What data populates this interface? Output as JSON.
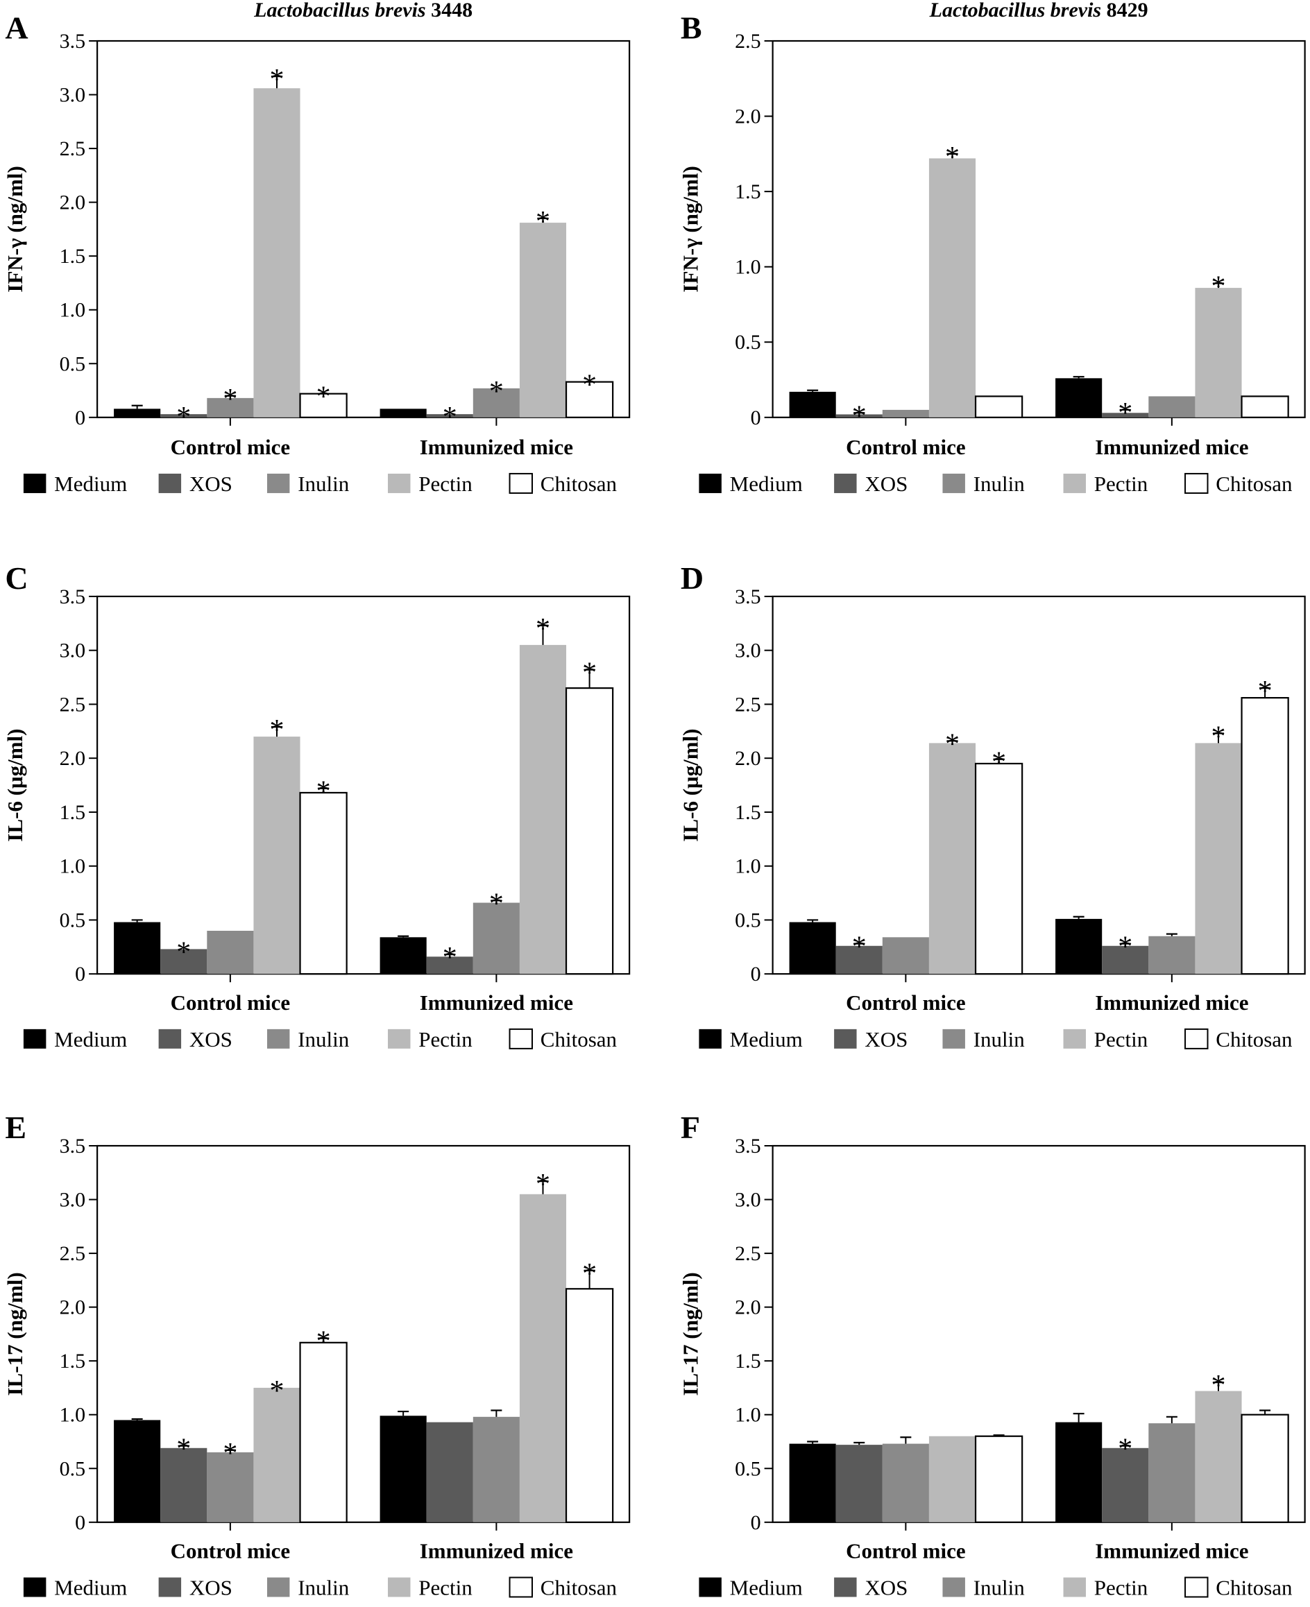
{
  "figure": {
    "legend": [
      {
        "name": "Medium",
        "color": "#000000"
      },
      {
        "name": "XOS",
        "color": "#5a5a5a"
      },
      {
        "name": "Inulin",
        "color": "#8a8a8a"
      },
      {
        "name": "Pectin",
        "color": "#b9b9b9"
      },
      {
        "name": "Chitosan",
        "color": "#ffffff"
      }
    ],
    "stroke_color": "#000000"
  },
  "chart_data": [
    {
      "panel": "A",
      "type": "bar",
      "title_italic": "Lactobacillus brevis",
      "title_strain": "3448",
      "ylabel": "IFN-γ (ng/ml)",
      "xlabel": "",
      "categories": [
        "Control mice",
        "Immunized mice"
      ],
      "ylim": [
        0,
        3.5
      ],
      "yticks": [
        0,
        0.5,
        1.0,
        1.5,
        2.0,
        2.5,
        3.0,
        3.5
      ],
      "ytick_labels": [
        "0",
        "0.5",
        "1.0",
        "1.5",
        "2.0",
        "2.5",
        "3.0",
        "3.5"
      ],
      "legend_position": "bottom",
      "series": [
        {
          "name": "Medium",
          "values": [
            0.08,
            0.08
          ],
          "errors": [
            0.03,
            0.0
          ],
          "significant": [
            false,
            false
          ]
        },
        {
          "name": "XOS",
          "values": [
            0.03,
            0.03
          ],
          "errors": [
            0.0,
            0.0
          ],
          "significant": [
            true,
            true
          ]
        },
        {
          "name": "Inulin",
          "values": [
            0.18,
            0.27
          ],
          "errors": [
            0.02,
            0.0
          ],
          "significant": [
            true,
            true
          ]
        },
        {
          "name": "Pectin",
          "values": [
            3.06,
            1.81
          ],
          "errors": [
            0.11,
            0.04
          ],
          "significant": [
            true,
            true
          ]
        },
        {
          "name": "Chitosan",
          "values": [
            0.22,
            0.33
          ],
          "errors": [
            0.0,
            0.0
          ],
          "significant": [
            true,
            true
          ]
        }
      ]
    },
    {
      "panel": "B",
      "type": "bar",
      "title_italic": "Lactobacillus brevis",
      "title_strain": "8429",
      "ylabel": "IFN-γ (ng/ml)",
      "xlabel": "",
      "categories": [
        "Control mice",
        "Immunized mice"
      ],
      "ylim": [
        0,
        2.5
      ],
      "yticks": [
        0,
        0.5,
        1.0,
        1.5,
        2.0,
        2.5
      ],
      "ytick_labels": [
        "0",
        "0.5",
        "1.0",
        "1.5",
        "2.0",
        "2.5"
      ],
      "legend_position": "bottom",
      "series": [
        {
          "name": "Medium",
          "values": [
            0.17,
            0.26
          ],
          "errors": [
            0.01,
            0.01
          ],
          "significant": [
            false,
            false
          ]
        },
        {
          "name": "XOS",
          "values": [
            0.02,
            0.03
          ],
          "errors": [
            0.01,
            0.02
          ],
          "significant": [
            true,
            true
          ]
        },
        {
          "name": "Inulin",
          "values": [
            0.05,
            0.14
          ],
          "errors": [
            0.0,
            0.0
          ],
          "significant": [
            false,
            false
          ]
        },
        {
          "name": "Pectin",
          "values": [
            1.72,
            0.86
          ],
          "errors": [
            0.03,
            0.03
          ],
          "significant": [
            true,
            true
          ]
        },
        {
          "name": "Chitosan",
          "values": [
            0.14,
            0.14
          ],
          "errors": [
            0.0,
            0.0
          ],
          "significant": [
            false,
            false
          ]
        }
      ]
    },
    {
      "panel": "C",
      "type": "bar",
      "title_italic": "",
      "title_strain": "",
      "ylabel": "IL-6 (μg/ml)",
      "xlabel": "",
      "categories": [
        "Control mice",
        "Immunized mice"
      ],
      "ylim": [
        0,
        3.5
      ],
      "yticks": [
        0,
        0.5,
        1.0,
        1.5,
        2.0,
        2.5,
        3.0,
        3.5
      ],
      "ytick_labels": [
        "0",
        "0.5",
        "1.0",
        "1.5",
        "2.0",
        "2.5",
        "3.0",
        "3.5"
      ],
      "legend_position": "bottom",
      "series": [
        {
          "name": "Medium",
          "values": [
            0.48,
            0.34
          ],
          "errors": [
            0.02,
            0.01
          ],
          "significant": [
            false,
            false
          ]
        },
        {
          "name": "XOS",
          "values": [
            0.23,
            0.16
          ],
          "errors": [
            0.0,
            0.02
          ],
          "significant": [
            true,
            true
          ]
        },
        {
          "name": "Inulin",
          "values": [
            0.4,
            0.66
          ],
          "errors": [
            0.0,
            0.02
          ],
          "significant": [
            false,
            true
          ]
        },
        {
          "name": "Pectin",
          "values": [
            2.2,
            3.05
          ],
          "errors": [
            0.09,
            0.18
          ],
          "significant": [
            true,
            true
          ]
        },
        {
          "name": "Chitosan",
          "values": [
            1.68,
            2.65
          ],
          "errors": [
            0.04,
            0.17
          ],
          "significant": [
            true,
            true
          ]
        }
      ]
    },
    {
      "panel": "D",
      "type": "bar",
      "title_italic": "",
      "title_strain": "",
      "ylabel": "IL-6 (μg/ml)",
      "xlabel": "",
      "categories": [
        "Control mice",
        "Immunized mice"
      ],
      "ylim": [
        0,
        3.5
      ],
      "yticks": [
        0,
        0.5,
        1.0,
        1.5,
        2.0,
        2.5,
        3.0,
        3.5
      ],
      "ytick_labels": [
        "0",
        "0.5",
        "1.0",
        "1.5",
        "2.0",
        "2.5",
        "3.0",
        "3.5"
      ],
      "legend_position": "bottom",
      "series": [
        {
          "name": "Medium",
          "values": [
            0.48,
            0.51
          ],
          "errors": [
            0.02,
            0.02
          ],
          "significant": [
            false,
            false
          ]
        },
        {
          "name": "XOS",
          "values": [
            0.26,
            0.26
          ],
          "errors": [
            0.02,
            0.02
          ],
          "significant": [
            true,
            true
          ]
        },
        {
          "name": "Inulin",
          "values": [
            0.34,
            0.35
          ],
          "errors": [
            0.0,
            0.02
          ],
          "significant": [
            false,
            false
          ]
        },
        {
          "name": "Pectin",
          "values": [
            2.14,
            2.14
          ],
          "errors": [
            0.02,
            0.09
          ],
          "significant": [
            true,
            true
          ]
        },
        {
          "name": "Chitosan",
          "values": [
            1.95,
            2.56
          ],
          "errors": [
            0.04,
            0.09
          ],
          "significant": [
            true,
            true
          ]
        }
      ]
    },
    {
      "panel": "E",
      "type": "bar",
      "title_italic": "",
      "title_strain": "",
      "ylabel": "IL-17 (ng/ml)",
      "xlabel": "",
      "categories": [
        "Control mice",
        "Immunized mice"
      ],
      "ylim": [
        0,
        3.5
      ],
      "yticks": [
        0,
        0.5,
        1.0,
        1.5,
        2.0,
        2.5,
        3.0,
        3.5
      ],
      "ytick_labels": [
        "0",
        "0.5",
        "1.0",
        "1.5",
        "2.0",
        "2.5",
        "3.0",
        "3.5"
      ],
      "legend_position": "bottom",
      "series": [
        {
          "name": "Medium",
          "values": [
            0.95,
            0.99
          ],
          "errors": [
            0.01,
            0.04
          ],
          "significant": [
            false,
            false
          ]
        },
        {
          "name": "XOS",
          "values": [
            0.69,
            0.93
          ],
          "errors": [
            0.02,
            0.0
          ],
          "significant": [
            true,
            false
          ]
        },
        {
          "name": "Inulin",
          "values": [
            0.65,
            0.98
          ],
          "errors": [
            0.02,
            0.06
          ],
          "significant": [
            true,
            false
          ]
        },
        {
          "name": "Pectin",
          "values": [
            1.25,
            3.05
          ],
          "errors": [
            0.0,
            0.12
          ],
          "significant": [
            true,
            true
          ]
        },
        {
          "name": "Chitosan",
          "values": [
            1.67,
            2.17
          ],
          "errors": [
            0.04,
            0.17
          ],
          "significant": [
            true,
            true
          ]
        }
      ]
    },
    {
      "panel": "F",
      "type": "bar",
      "title_italic": "",
      "title_strain": "",
      "ylabel": "IL-17 (ng/ml)",
      "xlabel": "",
      "categories": [
        "Control mice",
        "Immunized mice"
      ],
      "ylim": [
        0,
        3.5
      ],
      "yticks": [
        0,
        0.5,
        1.0,
        1.5,
        2.0,
        2.5,
        3.0,
        3.5
      ],
      "ytick_labels": [
        "0",
        "0.5",
        "1.0",
        "1.5",
        "2.0",
        "2.5",
        "3.0",
        "3.5"
      ],
      "legend_position": "bottom",
      "series": [
        {
          "name": "Medium",
          "values": [
            0.73,
            0.93
          ],
          "errors": [
            0.02,
            0.08
          ],
          "significant": [
            false,
            false
          ]
        },
        {
          "name": "XOS",
          "values": [
            0.72,
            0.69
          ],
          "errors": [
            0.02,
            0.02
          ],
          "significant": [
            false,
            true
          ]
        },
        {
          "name": "Inulin",
          "values": [
            0.73,
            0.92
          ],
          "errors": [
            0.06,
            0.06
          ],
          "significant": [
            false,
            false
          ]
        },
        {
          "name": "Pectin",
          "values": [
            0.8,
            1.22
          ],
          "errors": [
            0.0,
            0.08
          ],
          "significant": [
            false,
            true
          ]
        },
        {
          "name": "Chitosan",
          "values": [
            0.8,
            1.0
          ],
          "errors": [
            0.01,
            0.04
          ],
          "significant": [
            false,
            false
          ]
        }
      ]
    }
  ]
}
